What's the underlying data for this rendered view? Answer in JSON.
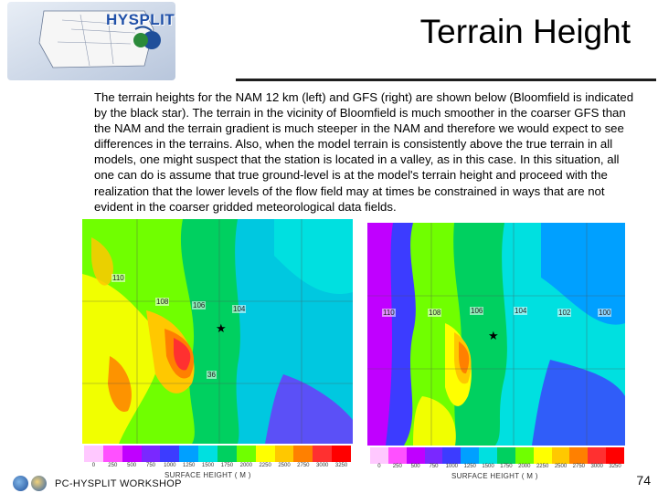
{
  "logo": {
    "text": "HYSPLIT"
  },
  "slide": {
    "title": "Terrain Height",
    "body": "The terrain heights for the NAM 12 km (left) and GFS (right) are shown below (Bloomfield is indicated by the black star). The terrain in the vicinity of Bloomfield is much smoother in the coarser GFS than the NAM and the terrain gradient is much steeper in the NAM and therefore we would expect to see differences in the terrains. Also, when the model terrain is consistently above the true terrain in all models, one might suspect that the station is located in a valley, as in this case. In this situation, all one can do is assume that true ground-level is at the model's terrain height and proceed with the realization that the lower levels of the flow field may at times be constrained in ways that are not evident in the coarser gridded meteorological data fields."
  },
  "left_map": {
    "labels": [
      "110",
      "108",
      "106",
      "104",
      "36"
    ],
    "colorbar_title": "SURFACE HEIGHT ( M )",
    "ticks": [
      "0",
      "250",
      "500",
      "750",
      "1000",
      "1250",
      "1500",
      "1750",
      "2000",
      "2250",
      "2500",
      "2750",
      "3000",
      "3250"
    ]
  },
  "right_map": {
    "labels": [
      "110",
      "108",
      "106",
      "104",
      "102",
      "100"
    ],
    "colorbar_title": "SURFACE HEIGHT ( M )",
    "ticks": [
      "0",
      "250",
      "500",
      "750",
      "1000",
      "1250",
      "1500",
      "1750",
      "2000",
      "2250",
      "2500",
      "2750",
      "3000",
      "3250"
    ]
  },
  "colors": [
    "#ffc8ff",
    "#ff50ff",
    "#c000ff",
    "#7a28ff",
    "#3c3cff",
    "#00a0ff",
    "#00e0e0",
    "#00d060",
    "#70ff00",
    "#ffff00",
    "#ffc800",
    "#ff8000",
    "#ff3030",
    "#ff0000"
  ],
  "footer": {
    "workshop": "PC-HYSPLIT WORKSHOP",
    "page": "74"
  }
}
